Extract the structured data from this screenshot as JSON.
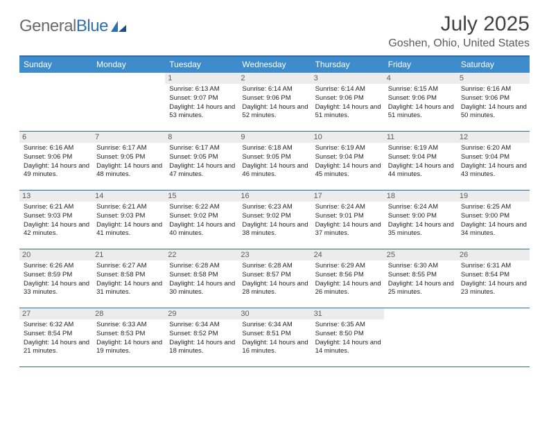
{
  "logo": {
    "text1": "General",
    "text2": "Blue"
  },
  "title": "July 2025",
  "location": "Goshen, Ohio, United States",
  "colors": {
    "header_bg": "#3e8ccc",
    "border": "#2d6aa8",
    "daynum_bg": "#ececec",
    "text_muted": "#5b5b5b"
  },
  "weekdays": [
    "Sunday",
    "Monday",
    "Tuesday",
    "Wednesday",
    "Thursday",
    "Friday",
    "Saturday"
  ],
  "weeks": [
    [
      null,
      null,
      {
        "n": "1",
        "sr": "6:13 AM",
        "ss": "9:07 PM",
        "dl": "14 hours and 53 minutes."
      },
      {
        "n": "2",
        "sr": "6:14 AM",
        "ss": "9:06 PM",
        "dl": "14 hours and 52 minutes."
      },
      {
        "n": "3",
        "sr": "6:14 AM",
        "ss": "9:06 PM",
        "dl": "14 hours and 51 minutes."
      },
      {
        "n": "4",
        "sr": "6:15 AM",
        "ss": "9:06 PM",
        "dl": "14 hours and 51 minutes."
      },
      {
        "n": "5",
        "sr": "6:16 AM",
        "ss": "9:06 PM",
        "dl": "14 hours and 50 minutes."
      }
    ],
    [
      {
        "n": "6",
        "sr": "6:16 AM",
        "ss": "9:06 PM",
        "dl": "14 hours and 49 minutes."
      },
      {
        "n": "7",
        "sr": "6:17 AM",
        "ss": "9:05 PM",
        "dl": "14 hours and 48 minutes."
      },
      {
        "n": "8",
        "sr": "6:17 AM",
        "ss": "9:05 PM",
        "dl": "14 hours and 47 minutes."
      },
      {
        "n": "9",
        "sr": "6:18 AM",
        "ss": "9:05 PM",
        "dl": "14 hours and 46 minutes."
      },
      {
        "n": "10",
        "sr": "6:19 AM",
        "ss": "9:04 PM",
        "dl": "14 hours and 45 minutes."
      },
      {
        "n": "11",
        "sr": "6:19 AM",
        "ss": "9:04 PM",
        "dl": "14 hours and 44 minutes."
      },
      {
        "n": "12",
        "sr": "6:20 AM",
        "ss": "9:04 PM",
        "dl": "14 hours and 43 minutes."
      }
    ],
    [
      {
        "n": "13",
        "sr": "6:21 AM",
        "ss": "9:03 PM",
        "dl": "14 hours and 42 minutes."
      },
      {
        "n": "14",
        "sr": "6:21 AM",
        "ss": "9:03 PM",
        "dl": "14 hours and 41 minutes."
      },
      {
        "n": "15",
        "sr": "6:22 AM",
        "ss": "9:02 PM",
        "dl": "14 hours and 40 minutes."
      },
      {
        "n": "16",
        "sr": "6:23 AM",
        "ss": "9:02 PM",
        "dl": "14 hours and 38 minutes."
      },
      {
        "n": "17",
        "sr": "6:24 AM",
        "ss": "9:01 PM",
        "dl": "14 hours and 37 minutes."
      },
      {
        "n": "18",
        "sr": "6:24 AM",
        "ss": "9:00 PM",
        "dl": "14 hours and 35 minutes."
      },
      {
        "n": "19",
        "sr": "6:25 AM",
        "ss": "9:00 PM",
        "dl": "14 hours and 34 minutes."
      }
    ],
    [
      {
        "n": "20",
        "sr": "6:26 AM",
        "ss": "8:59 PM",
        "dl": "14 hours and 33 minutes."
      },
      {
        "n": "21",
        "sr": "6:27 AM",
        "ss": "8:58 PM",
        "dl": "14 hours and 31 minutes."
      },
      {
        "n": "22",
        "sr": "6:28 AM",
        "ss": "8:58 PM",
        "dl": "14 hours and 30 minutes."
      },
      {
        "n": "23",
        "sr": "6:28 AM",
        "ss": "8:57 PM",
        "dl": "14 hours and 28 minutes."
      },
      {
        "n": "24",
        "sr": "6:29 AM",
        "ss": "8:56 PM",
        "dl": "14 hours and 26 minutes."
      },
      {
        "n": "25",
        "sr": "6:30 AM",
        "ss": "8:55 PM",
        "dl": "14 hours and 25 minutes."
      },
      {
        "n": "26",
        "sr": "6:31 AM",
        "ss": "8:54 PM",
        "dl": "14 hours and 23 minutes."
      }
    ],
    [
      {
        "n": "27",
        "sr": "6:32 AM",
        "ss": "8:54 PM",
        "dl": "14 hours and 21 minutes."
      },
      {
        "n": "28",
        "sr": "6:33 AM",
        "ss": "8:53 PM",
        "dl": "14 hours and 19 minutes."
      },
      {
        "n": "29",
        "sr": "6:34 AM",
        "ss": "8:52 PM",
        "dl": "14 hours and 18 minutes."
      },
      {
        "n": "30",
        "sr": "6:34 AM",
        "ss": "8:51 PM",
        "dl": "14 hours and 16 minutes."
      },
      {
        "n": "31",
        "sr": "6:35 AM",
        "ss": "8:50 PM",
        "dl": "14 hours and 14 minutes."
      },
      null,
      null
    ]
  ],
  "labels": {
    "sunrise": "Sunrise:",
    "sunset": "Sunset:",
    "daylight": "Daylight:"
  }
}
